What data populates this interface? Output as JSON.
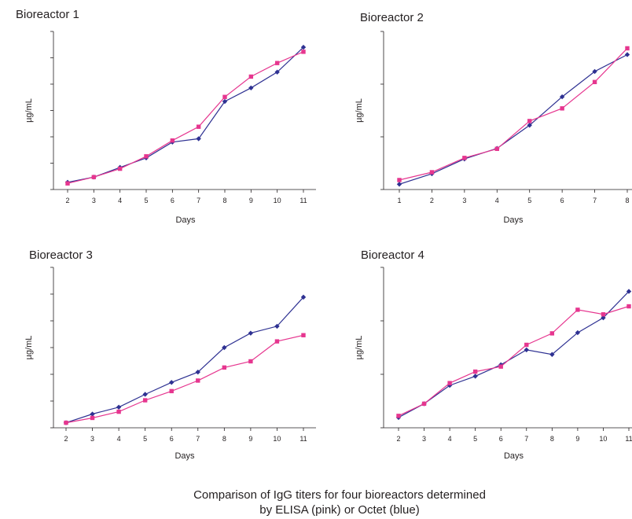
{
  "caption": {
    "line1": "Comparison of IgG titers for four bioreactors determined",
    "line2": "by ELISA (pink) or Octet (blue)"
  },
  "colors": {
    "elisa": "#e6368f",
    "octet": "#2e3192",
    "axis": "#231f20"
  },
  "chart_data": [
    {
      "type": "line",
      "title": "Bioreactor 1",
      "xlabel": "Days",
      "ylabel": "µg/mL",
      "categories": [
        "2",
        "3",
        "4",
        "5",
        "6",
        "7",
        "8",
        "9",
        "10",
        "11"
      ],
      "ylim": [
        0,
        7
      ],
      "y_ticks": 6,
      "series": [
        {
          "color": "#2e3192",
          "marker": "diamond",
          "values": [
            0.32,
            0.55,
            0.98,
            1.4,
            2.1,
            2.25,
            3.9,
            4.5,
            5.2,
            6.3
          ]
        },
        {
          "color": "#e6368f",
          "marker": "square",
          "values": [
            0.27,
            0.55,
            0.92,
            1.47,
            2.17,
            2.78,
            4.1,
            5.0,
            5.6,
            6.1
          ]
        }
      ]
    },
    {
      "type": "line",
      "title": "Bioreactor 2",
      "xlabel": "Days",
      "ylabel": "µg/mL",
      "categories": [
        "1",
        "2",
        "3",
        "4",
        "5",
        "6",
        "7",
        "8"
      ],
      "ylim": [
        0,
        7.5
      ],
      "y_ticks": 3,
      "series": [
        {
          "color": "#2e3192",
          "marker": "diamond",
          "values": [
            0.25,
            0.75,
            1.45,
            1.95,
            3.05,
            4.4,
            5.6,
            6.4
          ]
        },
        {
          "color": "#e6368f",
          "marker": "square",
          "values": [
            0.45,
            0.82,
            1.5,
            1.93,
            3.25,
            3.85,
            5.1,
            6.7
          ]
        }
      ]
    },
    {
      "type": "line",
      "title": "Bioreactor 3",
      "xlabel": "Days",
      "ylabel": "µg/mL",
      "categories": [
        "2",
        "3",
        "4",
        "5",
        "6",
        "7",
        "8",
        "9",
        "10",
        "11"
      ],
      "ylim": [
        0,
        7
      ],
      "y_ticks": 6,
      "series": [
        {
          "color": "#2e3192",
          "marker": "diamond",
          "values": [
            0.22,
            0.6,
            0.9,
            1.46,
            1.98,
            2.43,
            3.5,
            4.13,
            4.43,
            5.7
          ]
        },
        {
          "color": "#e6368f",
          "marker": "square",
          "values": [
            0.22,
            0.43,
            0.7,
            1.2,
            1.6,
            2.06,
            2.63,
            2.9,
            3.77,
            4.04
          ]
        }
      ]
    },
    {
      "type": "line",
      "title": "Bioreactor 4",
      "xlabel": "Days",
      "ylabel": "µg/mL",
      "categories": [
        "2",
        "3",
        "4",
        "5",
        "6",
        "7",
        "8",
        "9",
        "10",
        "11"
      ],
      "ylim": [
        0,
        7
      ],
      "y_ticks": 3,
      "series": [
        {
          "color": "#2e3192",
          "marker": "diamond",
          "values": [
            0.45,
            1.05,
            1.85,
            2.25,
            2.75,
            3.4,
            3.2,
            4.15,
            4.8,
            5.95
          ]
        },
        {
          "color": "#e6368f",
          "marker": "square",
          "values": [
            0.52,
            1.05,
            1.95,
            2.45,
            2.67,
            3.62,
            4.12,
            5.15,
            4.95,
            5.3
          ]
        }
      ]
    }
  ]
}
